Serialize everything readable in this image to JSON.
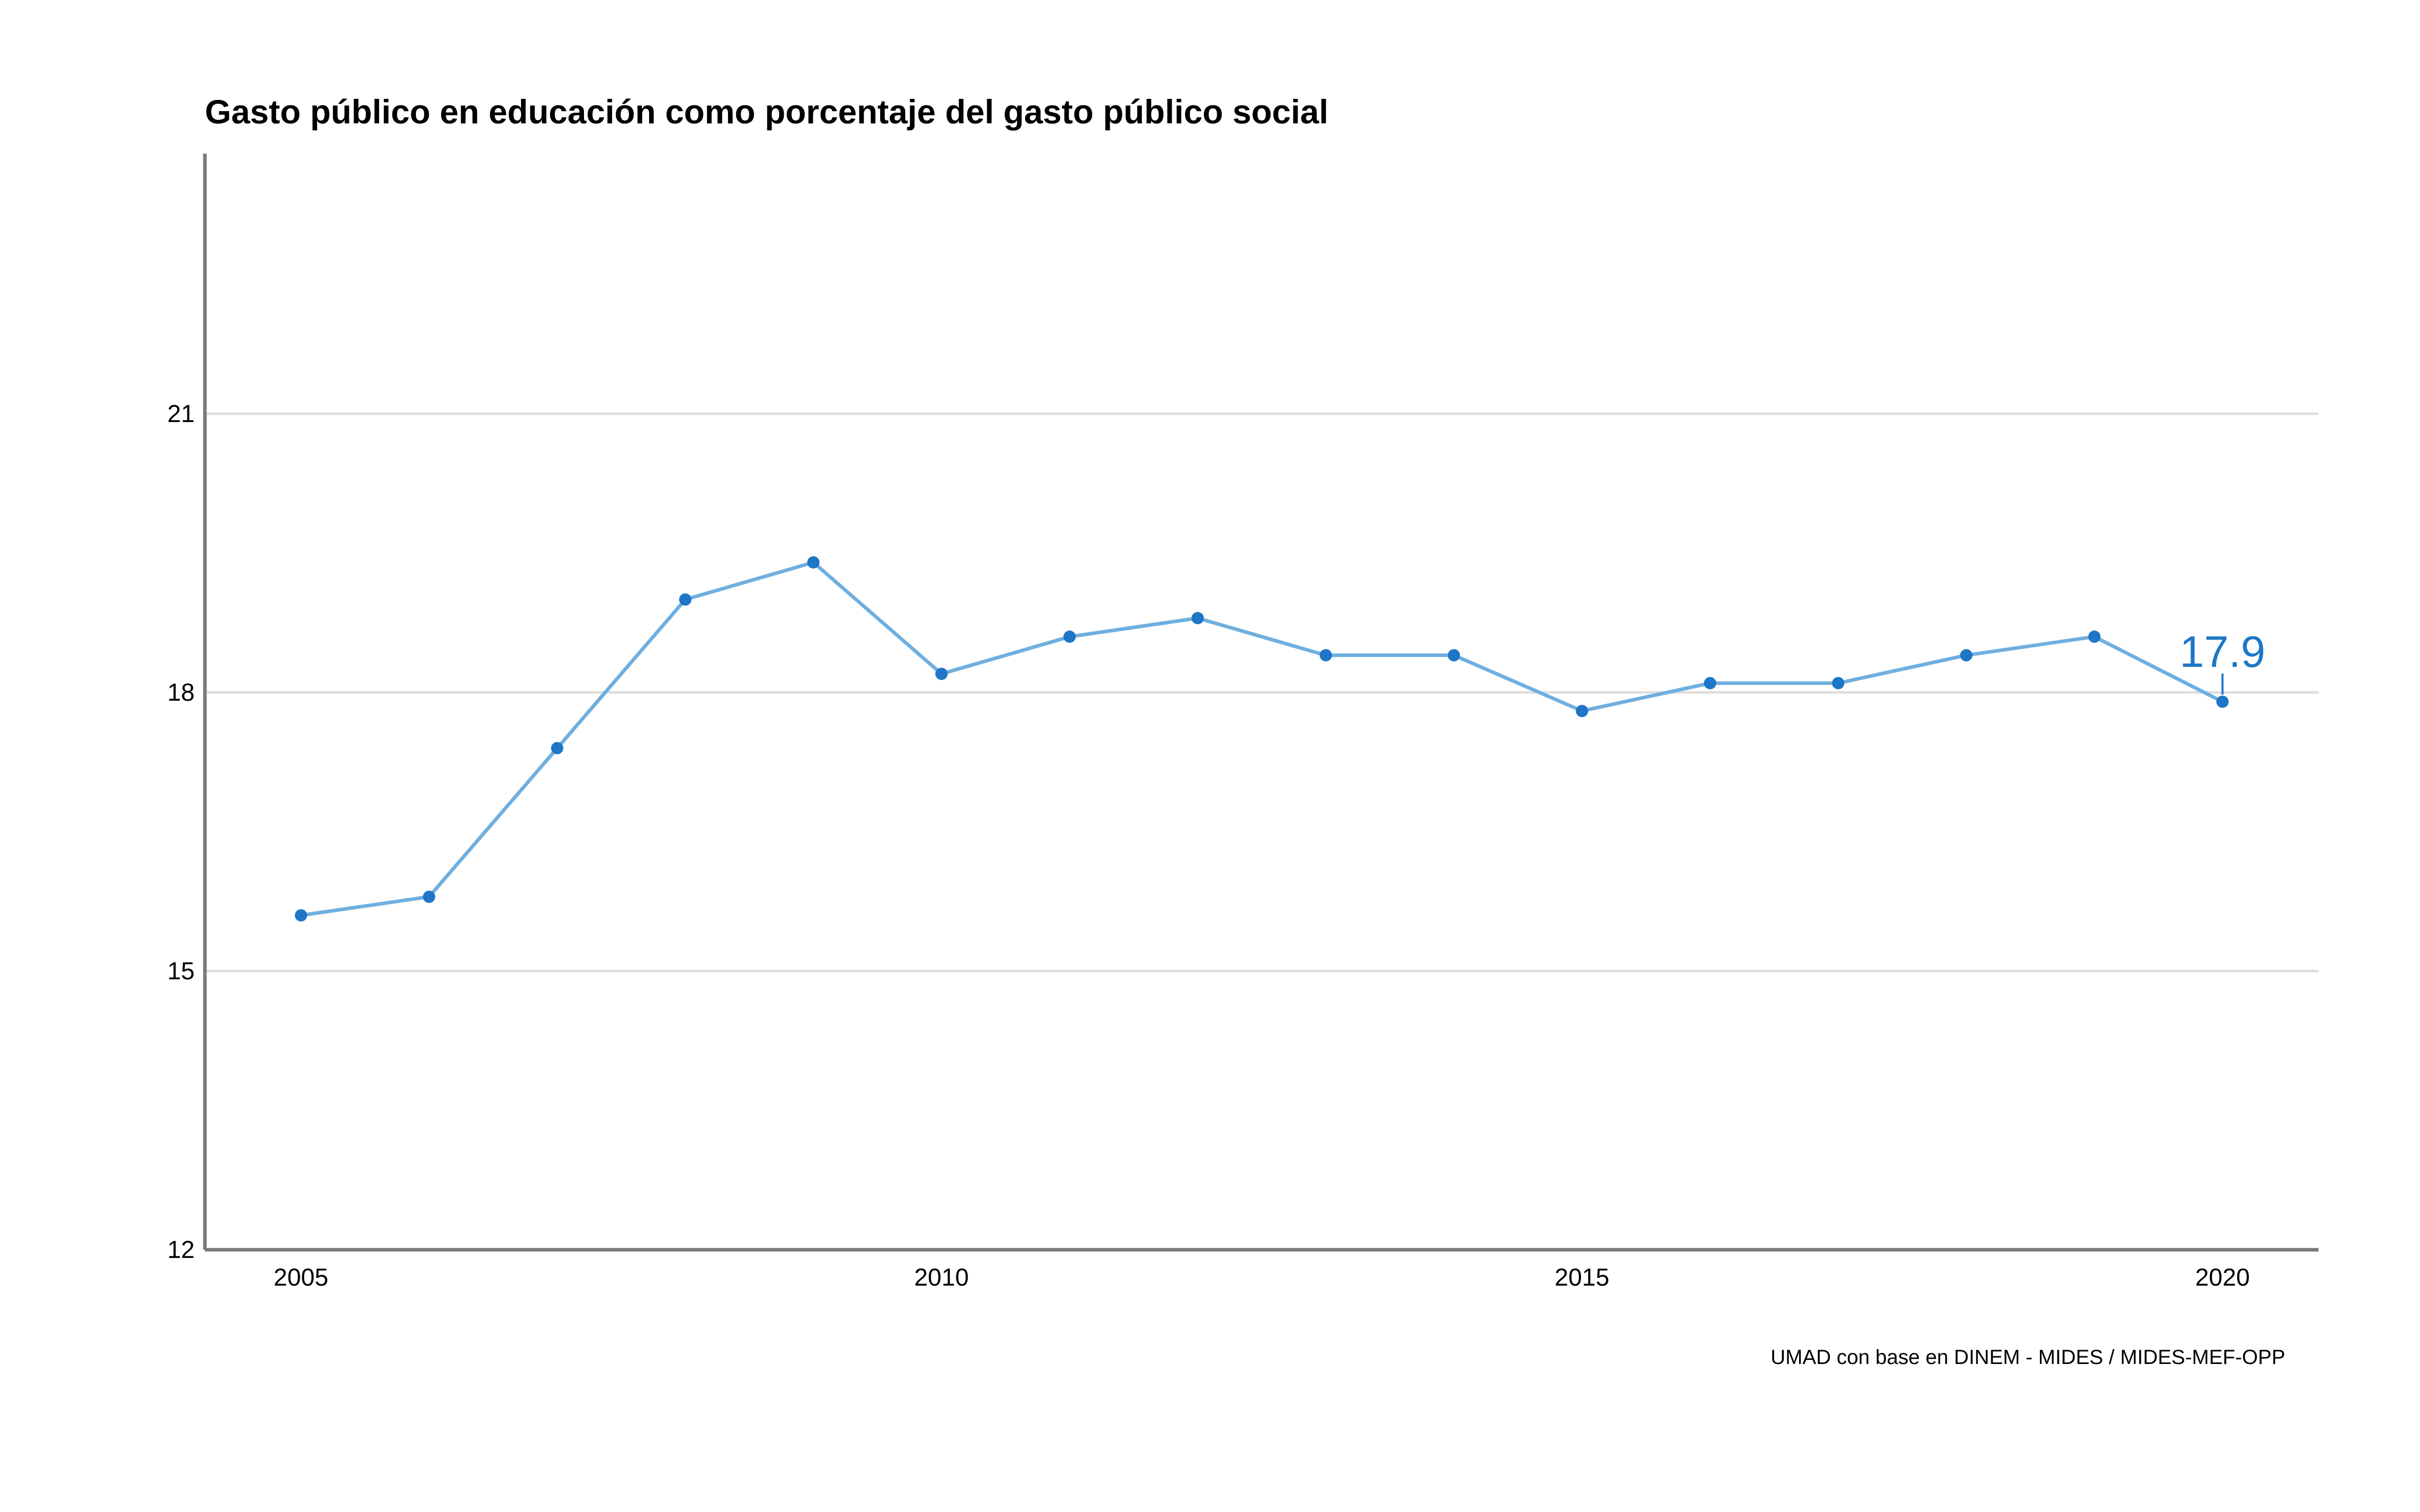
{
  "chart_data": {
    "type": "line",
    "title": "Gasto público en educación como porcentaje del gasto público social",
    "caption": "UMAD con base en DINEM - MIDES / MIDES-MEF-OPP",
    "xlabel": "",
    "ylabel": "",
    "x": [
      2005,
      2006,
      2007,
      2008,
      2009,
      2010,
      2011,
      2012,
      2013,
      2014,
      2015,
      2016,
      2017,
      2018,
      2019,
      2020
    ],
    "values": [
      15.6,
      15.8,
      17.4,
      19.0,
      19.4,
      18.2,
      18.6,
      18.8,
      18.4,
      18.4,
      17.8,
      18.1,
      18.1,
      18.4,
      18.6,
      17.9
    ],
    "xticks": [
      "2005",
      "2010",
      "2015",
      "2020"
    ],
    "yticks": [
      "12",
      "15",
      "18",
      "21"
    ],
    "xlim": [
      2004.25,
      2020.75
    ],
    "ylim": [
      12,
      23.8
    ],
    "grid": "horizontal",
    "last_value_label": "17.9",
    "colors": {
      "line": "#6fafe0",
      "point": "#1f76c6",
      "label": "#1f76c6",
      "grid": "#dedede",
      "axis": "#7a7a7a"
    }
  }
}
